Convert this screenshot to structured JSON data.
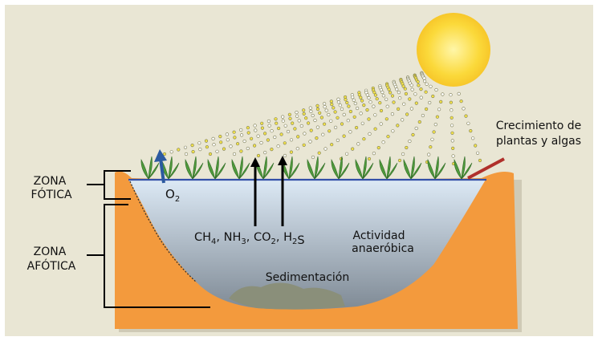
{
  "labels": {
    "zona_fotica_line1": "ZONA",
    "zona_fotica_line2": "FÓTICA",
    "zona_afotica_line1": "ZONA",
    "zona_afotica_line2": "AFÓTICA",
    "oxygen_main": "O",
    "oxygen_sub": "2",
    "gases": [
      {
        "main": "CH",
        "sub": "4",
        "sep": ", "
      },
      {
        "main": "NH",
        "sub": "3",
        "sep": ", "
      },
      {
        "main": "CO",
        "sub": "2",
        "sep": ", "
      },
      {
        "main": "H",
        "sub": "2",
        "sep": ""
      },
      {
        "main": "S",
        "sub": "",
        "sep": ""
      }
    ],
    "actividad_line1": "Actividad",
    "actividad_line2": "anaeróbica",
    "sedimentacion": "Sedimentación",
    "crecimiento_line1": "Crecimiento de",
    "crecimiento_line2": "plantas y algas"
  },
  "colors": {
    "background": "#e9e6d4",
    "earth": "#f39a3d",
    "earth_dark": "#e07d1f",
    "water_top": "#dce9f5",
    "water_deep": "#7f8a95",
    "surface_line": "#3350a8",
    "sun": "#fbd93a",
    "ray_dot": "#f3e24a",
    "plant": "#4f9a3c",
    "oxygen_arrow": "#2c5aa0",
    "gas_arrow": "#000000",
    "pointer_arrow": "#b0302b",
    "sediment": "#8a8f7a"
  }
}
